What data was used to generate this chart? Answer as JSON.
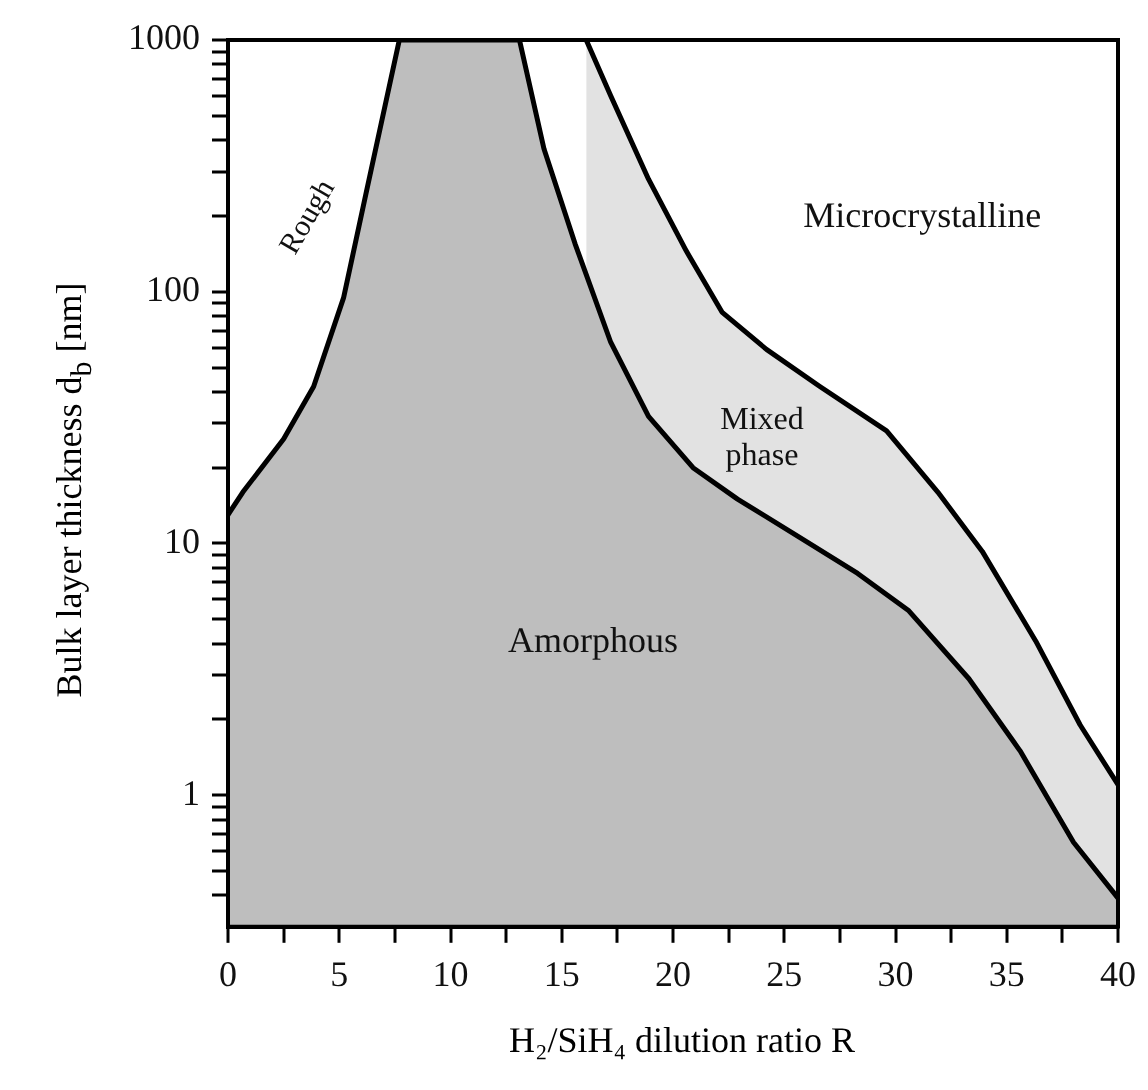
{
  "chart_data": {
    "type": "area",
    "xlabel": "H₂/SiH₄ dilution ratio R",
    "ylabel": "Bulk layer thickness d$_{b}$ [nm]",
    "series": [
      {
        "color": "#bebebe",
        "x": [
          0,
          0.67,
          2.5,
          3.85,
          5.2,
          6.2,
          7.7,
          13.1,
          14.2,
          15.6,
          17.2,
          18.9,
          20.9,
          22.9,
          25.6,
          28.3,
          30.6,
          33.3,
          35.6,
          38,
          40
        ],
        "values": [
          13,
          16,
          26,
          42,
          95,
          245,
          1000,
          1000,
          370,
          155,
          63,
          32,
          20,
          15,
          10.7,
          7.6,
          5.4,
          2.9,
          1.5,
          0.65,
          0.39
        ]
      },
      {
        "color": "#e2e2e2",
        "x": [
          16.1,
          17.2,
          18.9,
          20.6,
          22.2,
          24.2,
          26.6,
          29.6,
          31.9,
          33.9,
          36.3,
          38.3,
          40
        ],
        "values": [
          1000,
          600,
          280,
          145,
          83,
          59,
          42,
          28,
          16,
          9.3,
          4.1,
          1.9,
          1.1
        ]
      }
    ],
    "log": "y",
    "xlim": [
      0,
      40
    ],
    "ylim": [
      0.3,
      1000
    ],
    "xticks": [
      0,
      {
        "value": 2.5,
        "label": null
      },
      5,
      {
        "value": 7.5,
        "label": null
      },
      10,
      {
        "value": 12.5,
        "label": null
      },
      15,
      {
        "value": 17.5,
        "label": null
      },
      20,
      {
        "value": 22.5,
        "label": null
      },
      25,
      {
        "value": 27.5,
        "label": null
      },
      30,
      {
        "value": 32.5,
        "label": null
      },
      35,
      {
        "value": 37.5,
        "label": null
      },
      40
    ],
    "yticks": [
      {
        "value": 0.4,
        "label": null
      },
      {
        "value": 0.5,
        "label": null
      },
      {
        "value": 0.6,
        "label": null
      },
      {
        "value": 0.7,
        "label": null
      },
      {
        "value": 0.8,
        "label": null
      },
      {
        "value": 0.9,
        "label": null
      },
      1,
      {
        "value": 2,
        "label": null
      },
      {
        "value": 3,
        "label": null
      },
      {
        "value": 4,
        "label": null
      },
      {
        "value": 5,
        "label": null
      },
      {
        "value": 6,
        "label": null
      },
      {
        "value": 7,
        "label": null
      },
      {
        "value": 8,
        "label": null
      },
      {
        "value": 9,
        "label": null
      },
      10,
      {
        "value": 20,
        "label": null
      },
      {
        "value": 30,
        "label": null
      },
      {
        "value": 40,
        "label": null
      },
      {
        "value": 50,
        "label": null
      },
      {
        "value": 60,
        "label": null
      },
      {
        "value": 70,
        "label": null
      },
      {
        "value": 80,
        "label": null
      },
      {
        "value": 90,
        "label": null
      },
      100,
      {
        "value": 200,
        "label": null
      },
      {
        "value": 300,
        "label": null
      },
      {
        "value": 400,
        "label": null
      },
      {
        "value": 500,
        "label": null
      },
      {
        "value": 600,
        "label": null
      },
      {
        "value": 700,
        "label": null
      },
      {
        "value": 800,
        "label": null
      },
      {
        "value": 900,
        "label": null
      },
      1000
    ],
    "legend": false,
    "annotations": [
      "Rough",
      "Amorphous",
      "Mixed phase",
      "Microcrystalline"
    ]
  }
}
